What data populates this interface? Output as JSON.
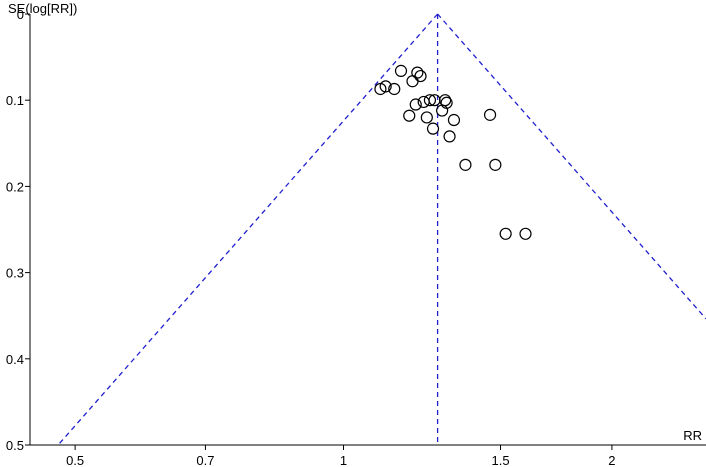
{
  "chart_data": {
    "type": "scatter",
    "title": "",
    "xlabel": "RR",
    "ylabel": "SE(log[RR])",
    "x_scale": "log",
    "y_reversed": true,
    "xlim": [
      0.445,
      2.55
    ],
    "ylim": [
      0,
      0.5
    ],
    "x_ticks": [
      0.5,
      0.7,
      1,
      1.5,
      2
    ],
    "x_tick_labels": [
      "0.5",
      "0.7",
      "1",
      "1.5",
      "2"
    ],
    "y_ticks": [
      0,
      0.1,
      0.2,
      0.3,
      0.4,
      0.5
    ],
    "y_tick_labels": [
      "0",
      "0.1",
      "0.2",
      "0.3",
      "0.4",
      "0.5"
    ],
    "grid": false,
    "pooled_estimate": 1.275,
    "funnel_color": "#1f1fd0",
    "series": [
      {
        "x": [
          1.1,
          1.115,
          1.14,
          1.16,
          1.185,
          1.195,
          1.205,
          1.21,
          1.22,
          1.23,
          1.24,
          1.25,
          1.26,
          1.265,
          1.29,
          1.3,
          1.305,
          1.315,
          1.33,
          1.37,
          1.46,
          1.48,
          1.52,
          1.6
        ],
        "y": [
          0.087,
          0.084,
          0.087,
          0.066,
          0.118,
          0.078,
          0.105,
          0.068,
          0.072,
          0.102,
          0.12,
          0.1,
          0.133,
          0.1,
          0.112,
          0.1,
          0.103,
          0.142,
          0.123,
          0.175,
          0.117,
          0.175,
          0.255,
          0.255
        ]
      }
    ]
  }
}
